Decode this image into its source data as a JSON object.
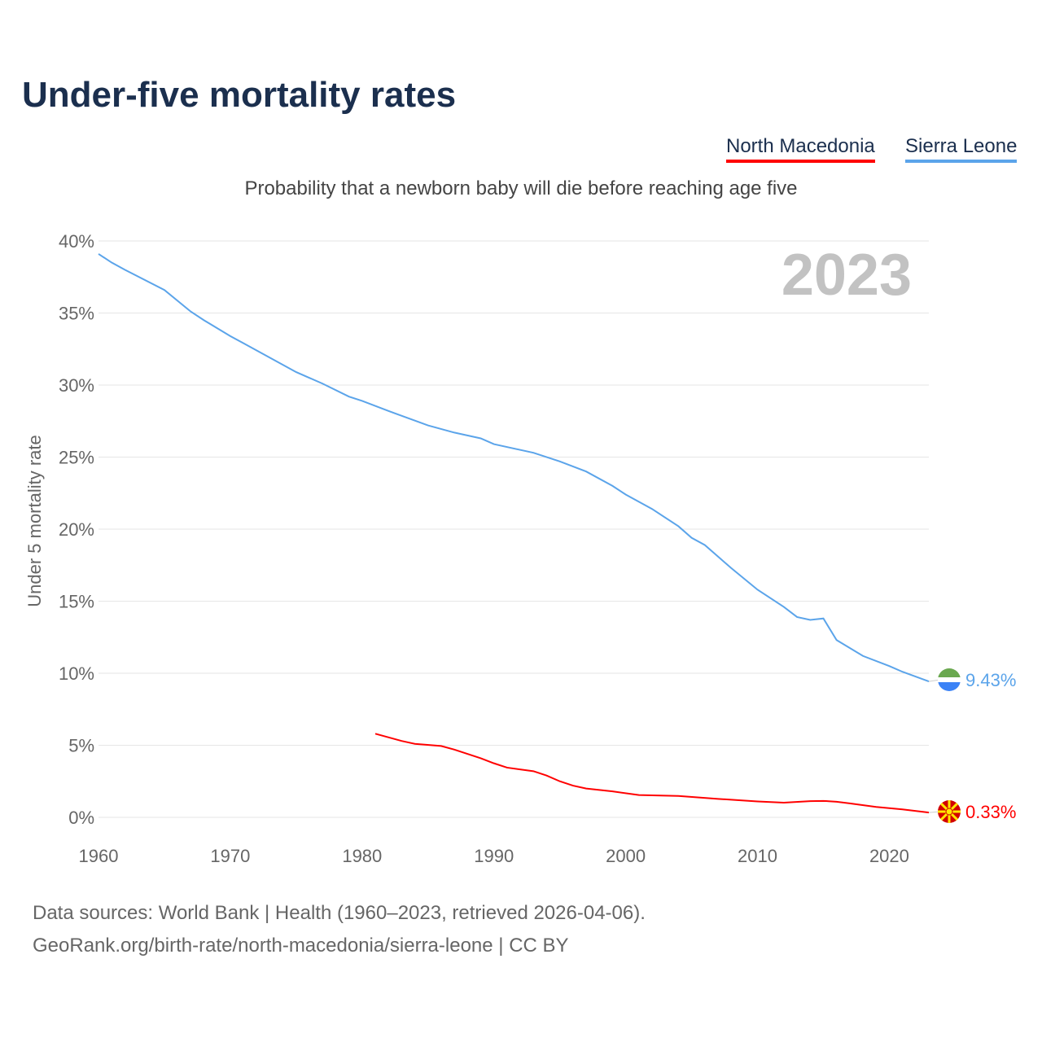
{
  "chart_data": {
    "type": "line",
    "title": "Under-five mortality rates",
    "subtitle": "Probability that a newborn baby will die before reaching age five",
    "ylabel": "Under 5 mortality rate",
    "xlabel": "",
    "year_label": "2023",
    "xlim": [
      1960,
      2023
    ],
    "ylim": [
      0,
      40
    ],
    "x_ticks": [
      1960,
      1970,
      1980,
      1990,
      2000,
      2010,
      2020
    ],
    "y_ticks": [
      {
        "v": 0,
        "label": "0%"
      },
      {
        "v": 5,
        "label": "5%"
      },
      {
        "v": 10,
        "label": "10%"
      },
      {
        "v": 15,
        "label": "15%"
      },
      {
        "v": 20,
        "label": "20%"
      },
      {
        "v": 25,
        "label": "25%"
      },
      {
        "v": 30,
        "label": "30%"
      },
      {
        "v": 35,
        "label": "35%"
      },
      {
        "v": 40,
        "label": "40%"
      }
    ],
    "grid": true,
    "legend_position": "top-right",
    "series": [
      {
        "name": "North Macedonia",
        "color": "#ff0000",
        "end_label": "0.33%",
        "x": [
          1981,
          1983,
          1984,
          1986,
          1987,
          1989,
          1990,
          1991,
          1993,
          1994,
          1995,
          1996,
          1997,
          1999,
          2001,
          2004,
          2007,
          2010,
          2012,
          2014,
          2015,
          2016,
          2017,
          2019,
          2021,
          2023
        ],
        "y": [
          5.8,
          5.3,
          5.1,
          4.95,
          4.7,
          4.1,
          3.75,
          3.45,
          3.2,
          2.9,
          2.5,
          2.2,
          2.0,
          1.8,
          1.55,
          1.48,
          1.28,
          1.1,
          1.02,
          1.12,
          1.14,
          1.08,
          0.97,
          0.72,
          0.55,
          0.33
        ]
      },
      {
        "name": "Sierra Leone",
        "color": "#5ba4ea",
        "end_label": "9.43%",
        "x": [
          1960,
          1961,
          1962,
          1965,
          1967,
          1968,
          1970,
          1971,
          1972,
          1973,
          1975,
          1976,
          1977,
          1979,
          1980,
          1982,
          1985,
          1987,
          1989,
          1990,
          1993,
          1995,
          1997,
          1999,
          2000,
          2001,
          2002,
          2004,
          2005,
          2006,
          2007,
          2008,
          2010,
          2012,
          2013,
          2014,
          2015,
          2016,
          2018,
          2020,
          2021,
          2023
        ],
        "y": [
          39.1,
          38.5,
          38.0,
          36.6,
          35.1,
          34.5,
          33.4,
          32.9,
          32.4,
          31.9,
          30.9,
          30.5,
          30.1,
          29.2,
          28.9,
          28.2,
          27.2,
          26.7,
          26.3,
          25.9,
          25.3,
          24.7,
          24.0,
          23.0,
          22.4,
          21.9,
          21.4,
          20.2,
          19.4,
          18.9,
          18.1,
          17.3,
          15.8,
          14.6,
          13.9,
          13.7,
          13.8,
          12.3,
          11.2,
          10.5,
          10.1,
          9.43
        ]
      }
    ]
  },
  "source_line1": "Data sources: World Bank | Health (1960–2023, retrieved 2026-04-06).",
  "source_line2": "GeoRank.org/birth-rate/north-macedonia/sierra-leone | CC BY"
}
